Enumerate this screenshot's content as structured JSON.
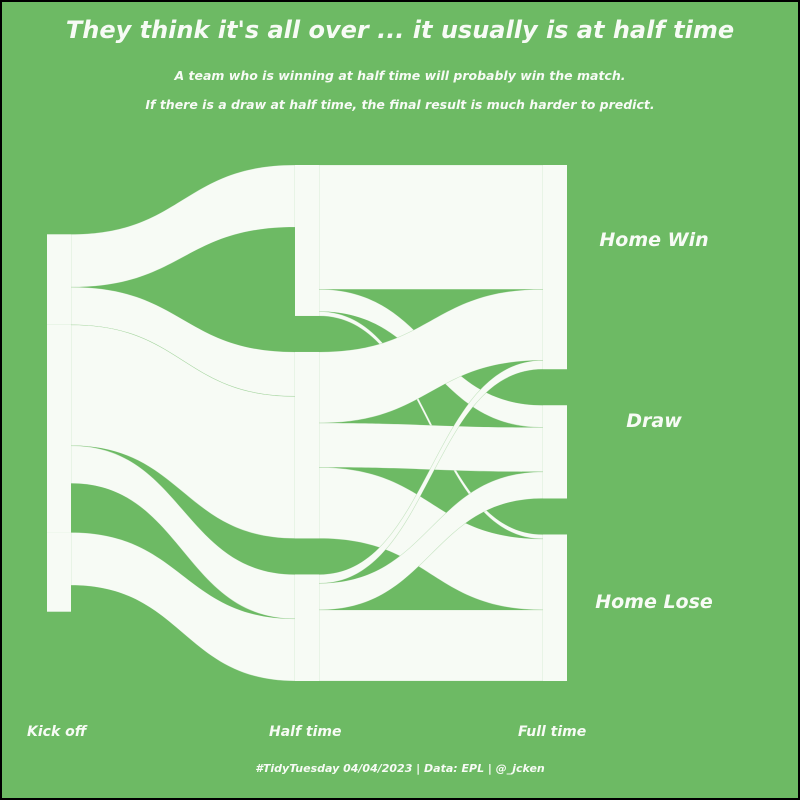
{
  "title": "They think it's all over ... it usually is at half time",
  "subtitle_line1": "A team who is winning at half time will probably win the match.",
  "subtitle_line2": "If there is a draw at half time, the final result is much harder to predict.",
  "caption": "#TidyTuesday 04/04/2023 | Data: EPL | @_jcken",
  "colors": {
    "background": "#6dba64",
    "flow": "#f7fbf5",
    "text": "#f7fbf5"
  },
  "chart_data": {
    "type": "sankey",
    "stages": [
      "Kick off",
      "Half time",
      "Full time"
    ],
    "categories": [
      "Home Win",
      "Draw",
      "Home Lose"
    ],
    "nodes": {
      "Kick off": {
        "Home Win": 24,
        "Draw": 55,
        "Home Lose": 21
      },
      "Half time": {
        "Home Win": 34,
        "Draw": 42,
        "Home Lose": 24
      },
      "Full time": {
        "Home Win": 46,
        "Draw": 21,
        "Home Lose": 33
      }
    },
    "flows_kickoff_to_halftime": [
      {
        "from": "Home Win",
        "to": "Home Win",
        "value": 14
      },
      {
        "from": "Home Win",
        "to": "Draw",
        "value": 10
      },
      {
        "from": "Draw",
        "to": "Draw",
        "value": 32
      },
      {
        "from": "Draw",
        "to": "Home Lose",
        "value": 10
      },
      {
        "from": "Home Lose",
        "to": "Home Lose",
        "value": 14
      }
    ],
    "flows_halftime_to_fulltime": [
      {
        "from": "Home Win",
        "to": "Home Win",
        "value": 28
      },
      {
        "from": "Home Win",
        "to": "Draw",
        "value": 5
      },
      {
        "from": "Home Win",
        "to": "Home Lose",
        "value": 1
      },
      {
        "from": "Draw",
        "to": "Home Win",
        "value": 16
      },
      {
        "from": "Draw",
        "to": "Draw",
        "value": 10
      },
      {
        "from": "Draw",
        "to": "Home Lose",
        "value": 16
      },
      {
        "from": "Home Lose",
        "to": "Home Win",
        "value": 2
      },
      {
        "from": "Home Lose",
        "to": "Draw",
        "value": 6
      },
      {
        "from": "Home Lose",
        "to": "Home Lose",
        "value": 16
      }
    ]
  }
}
